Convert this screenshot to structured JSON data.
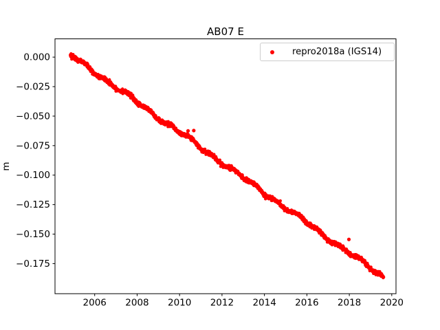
{
  "figure": {
    "background": "#ffffff",
    "frame_color": "#000000",
    "text_color": "#000000"
  },
  "chart_data": {
    "type": "scatter",
    "title": "AB07 E",
    "xlabel": "",
    "ylabel": "m",
    "grid": false,
    "xlim": [
      2004.13,
      2020.2
    ],
    "ylim": [
      -0.2005,
      0.0155
    ],
    "xticks": [
      2006,
      2008,
      2010,
      2012,
      2014,
      2016,
      2018,
      2020
    ],
    "xtick_labels": [
      "2006",
      "2008",
      "2010",
      "2012",
      "2014",
      "2016",
      "2018",
      "2020"
    ],
    "yticks": [
      0.0,
      -0.025,
      -0.05,
      -0.075,
      -0.1,
      -0.125,
      -0.15,
      -0.175
    ],
    "ytick_labels": [
      "0.000",
      "−0.025",
      "−0.050",
      "−0.075",
      "−0.100",
      "−0.125",
      "−0.150",
      "−0.175"
    ],
    "legend": {
      "position": "upper right",
      "entries": [
        {
          "label": "repro2018a (IGS14)",
          "color": "#ff0000",
          "marker": "point"
        }
      ]
    },
    "series": [
      {
        "name": "repro2018a (IGS14)",
        "color": "#ff0000",
        "marker": ".",
        "marker_radius_px": 2.2,
        "n_points": 2000,
        "t_start": 2004.85,
        "t_end": 2019.62,
        "trend": {
          "value_at_start_m": 0.002,
          "slope_m_per_yr": -0.01278
        },
        "annual_amplitude_m": 0.0012,
        "annual_phase_yr": 0.3,
        "wander_amplitude_m": 0.0009,
        "wander_period_yr": 2.7,
        "noise_sigma_m": 0.0009,
        "seed": 42,
        "outliers": [
          {
            "t": 2010.4,
            "v": -0.0625
          },
          {
            "t": 2010.67,
            "v": -0.0622
          },
          {
            "t": 2017.98,
            "v": -0.1545
          }
        ],
        "trend_sample_points": [
          [
            2005.0,
            0.0001
          ],
          [
            2006.0,
            -0.0127
          ],
          [
            2007.0,
            -0.0255
          ],
          [
            2008.0,
            -0.0383
          ],
          [
            2009.0,
            -0.0511
          ],
          [
            2010.0,
            -0.0638
          ],
          [
            2011.0,
            -0.0766
          ],
          [
            2012.0,
            -0.0894
          ],
          [
            2013.0,
            -0.1022
          ],
          [
            2014.0,
            -0.115
          ],
          [
            2015.0,
            -0.1277
          ],
          [
            2016.0,
            -0.1405
          ],
          [
            2017.0,
            -0.1533
          ],
          [
            2018.0,
            -0.1661
          ],
          [
            2019.0,
            -0.1789
          ],
          [
            2019.62,
            -0.1868
          ]
        ]
      }
    ]
  }
}
